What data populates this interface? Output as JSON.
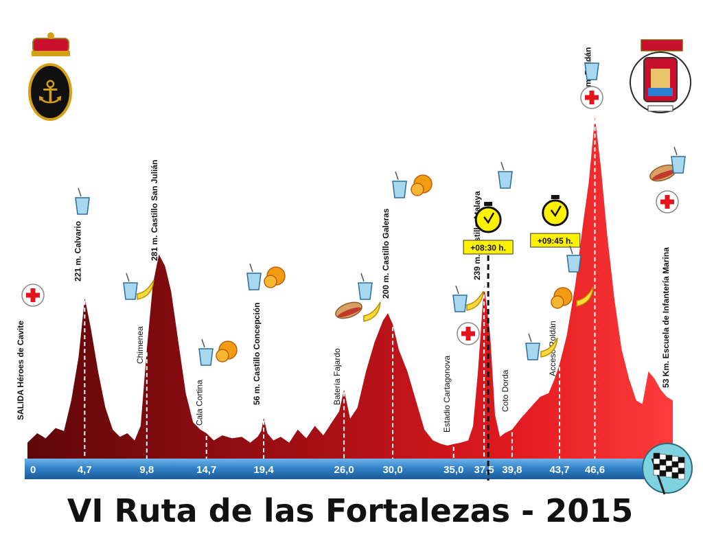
{
  "title": "VI Ruta de las Fortalezas - 2015",
  "colors": {
    "profile_dark": "#6e0a0c",
    "profile_mid": "#b5121b",
    "profile_bright": "#ff2a2a",
    "axis_band": "#3a86c8",
    "timecut_bg": "#fff200"
  },
  "chart_data": {
    "type": "area",
    "title": "VI Ruta de las Fortalezas - 2015",
    "xlabel": "",
    "ylabel": "",
    "xlim": [
      0,
      53
    ],
    "ylim": [
      0,
      480
    ],
    "x_ticks": [
      "0",
      "4,7",
      "9,8",
      "14,7",
      "19,4",
      "26,0",
      "30,0",
      "35,0",
      "37,5",
      "39,8",
      "43,7",
      "46,6"
    ],
    "x_tick_values": [
      0,
      4.7,
      9.8,
      14.7,
      19.4,
      26.0,
      30.0,
      35.0,
      37.5,
      39.8,
      43.7,
      46.6
    ],
    "profile": {
      "x": [
        0,
        0.8,
        1.5,
        2.3,
        3.0,
        3.6,
        4.2,
        4.7,
        5.2,
        5.8,
        6.4,
        7.0,
        7.6,
        8.2,
        8.8,
        9.3,
        9.8,
        10.3,
        10.8,
        11.3,
        11.8,
        12.4,
        13.0,
        13.6,
        14.2,
        14.7,
        15.3,
        16.0,
        16.8,
        17.6,
        18.3,
        18.9,
        19.2,
        19.4,
        19.7,
        20.2,
        20.8,
        21.5,
        22.2,
        22.9,
        23.6,
        24.3,
        25.0,
        25.6,
        26.0,
        26.5,
        27.1,
        27.8,
        28.5,
        29.2,
        29.6,
        30.0,
        30.5,
        31.2,
        31.9,
        32.6,
        33.3,
        34.0,
        34.5,
        35.0,
        35.6,
        36.2,
        36.6,
        37.0,
        37.5,
        38.0,
        38.4,
        38.8,
        39.2,
        39.8,
        40.5,
        41.3,
        42.1,
        42.8,
        43.3,
        43.7,
        44.3,
        45.0,
        45.6,
        46.1,
        46.6,
        47.1,
        47.6,
        48.2,
        48.8,
        49.4,
        50.0,
        50.5,
        51.0,
        51.5,
        52.0,
        52.5,
        53.0
      ],
      "y": [
        22,
        35,
        28,
        42,
        38,
        80,
        140,
        221,
        180,
        120,
        70,
        40,
        30,
        35,
        25,
        45,
        150,
        240,
        281,
        265,
        230,
        160,
        90,
        50,
        40,
        35,
        25,
        32,
        28,
        30,
        22,
        30,
        38,
        56,
        35,
        25,
        30,
        22,
        40,
        28,
        45,
        32,
        50,
        65,
        95,
        55,
        70,
        120,
        160,
        190,
        200,
        185,
        150,
        120,
        80,
        40,
        25,
        20,
        18,
        20,
        22,
        25,
        45,
        120,
        239,
        170,
        60,
        30,
        35,
        40,
        55,
        70,
        85,
        90,
        110,
        130,
        170,
        240,
        320,
        380,
        470,
        400,
        310,
        220,
        150,
        110,
        80,
        75,
        120,
        110,
        95,
        85,
        80
      ]
    },
    "waypoints": [
      {
        "km": 0,
        "label": "SALIDA  Héroes de Cavite"
      },
      {
        "km": 4.7,
        "label": "221 m. Calvario"
      },
      {
        "km": 9.8,
        "label": "Chimenea"
      },
      {
        "km": 11.0,
        "label": "281 m. Castillo San Julián"
      },
      {
        "km": 14.7,
        "label": "Cala Cortina"
      },
      {
        "km": 19.4,
        "label": "56 m. Castillo Concepción"
      },
      {
        "km": 26.0,
        "label": "Batería Fajardo"
      },
      {
        "km": 30.0,
        "label": "200 m. Castillo Galeras"
      },
      {
        "km": 35.0,
        "label": "Estadio Cartagonova"
      },
      {
        "km": 37.5,
        "label": "239 m. Castillo Atalaya"
      },
      {
        "km": 39.8,
        "label": "Coto Dorda"
      },
      {
        "km": 43.7,
        "label": "Acceso Roldán"
      },
      {
        "km": 46.6,
        "label": "470 m. Roldán"
      },
      {
        "km": 53,
        "label": "53 Km.  Escuela de Infantería  Marina"
      }
    ],
    "time_cuts": [
      {
        "km": 36.6,
        "label": "+08:30 h."
      },
      {
        "km": 42.5,
        "label": "+09:45 h."
      }
    ]
  },
  "icons": {
    "aid_station": "water-glass-icon",
    "fruit": "orange-icon",
    "banana": "banana-icon",
    "sandwich": "sandwich-icon",
    "medical": "red-cross-icon",
    "timer": "stopwatch-icon",
    "finish": "checkered-flag-icon",
    "left_logo": "navy-anchor-emblem",
    "right_logo": "cartagena-coat-of-arms"
  }
}
